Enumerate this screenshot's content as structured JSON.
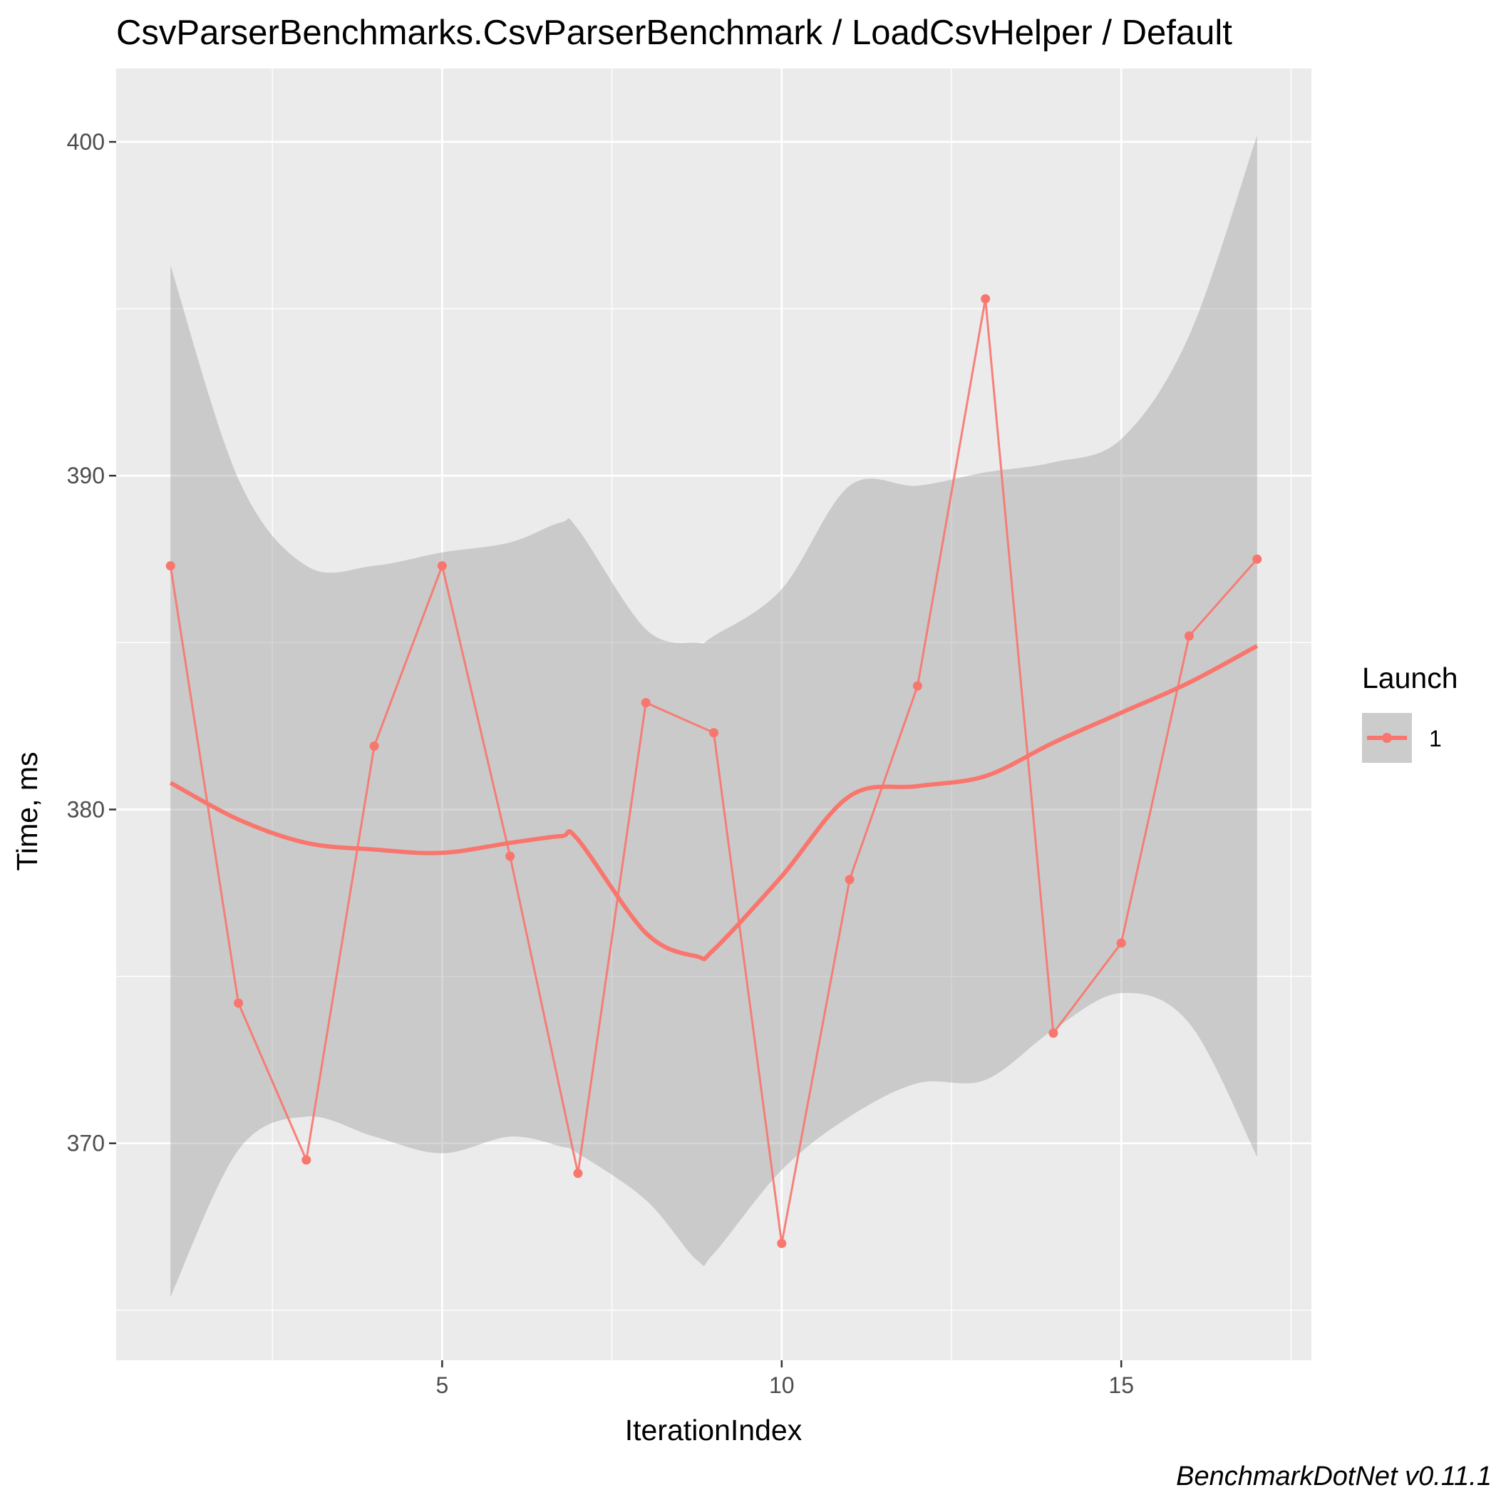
{
  "chart_data": {
    "type": "line",
    "title": "CsvParserBenchmarks.CsvParserBenchmark / LoadCsvHelper / Default",
    "xlabel": "IterationIndex",
    "ylabel": "Time, ms",
    "caption": "BenchmarkDotNet v0.11.1",
    "xlim": [
      0.2,
      17.8
    ],
    "ylim": [
      363.5,
      402.2
    ],
    "x_ticks": [
      5,
      10,
      15
    ],
    "x_tick_labels": [
      "5",
      "10",
      "15"
    ],
    "y_ticks": [
      370,
      380,
      390,
      400
    ],
    "y_tick_labels": [
      "370",
      "380",
      "390",
      "400"
    ],
    "grid": true,
    "legend": {
      "title": "Launch",
      "position": "right",
      "entries": [
        "1"
      ]
    },
    "series": [
      {
        "name": "1",
        "color": "#F8766D",
        "x": [
          1,
          2,
          3,
          4,
          5,
          6,
          7,
          8,
          9,
          10,
          11,
          12,
          13,
          14,
          15,
          16,
          17
        ],
        "y": [
          387.3,
          374.2,
          369.5,
          381.9,
          387.3,
          378.6,
          369.1,
          383.2,
          382.3,
          367.0,
          377.9,
          383.7,
          395.3,
          373.3,
          376.0,
          385.2,
          387.5
        ]
      }
    ],
    "smooth": {
      "color": "#F8766D",
      "band_color": "#999999",
      "x": [
        1,
        2,
        3,
        4,
        5,
        6,
        6.75,
        7,
        8,
        8.75,
        9,
        10,
        11,
        12,
        13,
        14,
        15,
        16,
        17
      ],
      "y": [
        380.8,
        379.7,
        379.0,
        378.8,
        378.7,
        379.0,
        379.2,
        379.1,
        376.3,
        375.6,
        375.8,
        378.0,
        380.4,
        380.7,
        381.0,
        382.0,
        382.9,
        383.8,
        384.9
      ],
      "ymin": [
        365.4,
        369.8,
        370.8,
        370.2,
        369.7,
        370.2,
        369.9,
        369.7,
        368.3,
        366.5,
        366.7,
        369.2,
        370.8,
        371.8,
        371.9,
        373.4,
        374.5,
        373.6,
        369.6
      ],
      "ymax": [
        396.3,
        389.9,
        387.3,
        387.3,
        387.7,
        388.0,
        388.6,
        388.4,
        385.4,
        385.0,
        385.2,
        386.6,
        389.7,
        389.7,
        390.1,
        390.4,
        391.1,
        394.2,
        400.2
      ]
    }
  }
}
